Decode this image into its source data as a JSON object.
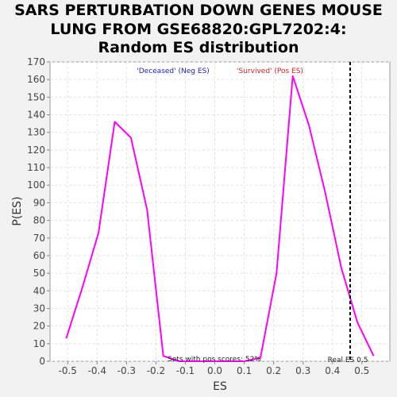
{
  "chart_data": {
    "type": "line",
    "title": [
      "SARS PERTURBATION DOWN GENES MOUSE",
      "LUNG FROM GSE68820:GPL7202:4:",
      "Random ES distribution"
    ],
    "xlabel": "ES",
    "ylabel": "P(ES)",
    "xlim": [
      -0.56,
      0.595
    ],
    "ylim": [
      0,
      170
    ],
    "x_ticks": [
      -0.5,
      -0.4,
      -0.3,
      -0.2,
      -0.1,
      0.0,
      0.1,
      0.2,
      0.3,
      0.4,
      0.5
    ],
    "x_tick_labels": [
      "-0.5",
      "-0.4",
      "-0.3",
      "-0.2",
      "-0.1",
      "0.0",
      "0.1",
      "0.2",
      "0.3",
      "0.4",
      "0.5"
    ],
    "y_ticks": [
      0,
      10,
      20,
      30,
      40,
      50,
      60,
      70,
      80,
      90,
      100,
      110,
      120,
      130,
      140,
      150,
      160,
      170
    ],
    "grid": true,
    "series": [
      {
        "color": "#ff00ff",
        "x": [
          -0.505,
          -0.45,
          -0.395,
          -0.34,
          -0.285,
          -0.23,
          -0.175,
          -0.12,
          -0.065,
          -0.01,
          0.045,
          0.1,
          0.155,
          0.21,
          0.265,
          0.32,
          0.375,
          0.43,
          0.485,
          0.54
        ],
        "y": [
          13,
          42,
          73,
          136,
          127,
          86,
          3,
          0,
          0,
          0,
          0,
          0,
          2,
          50,
          162,
          134,
          96,
          53,
          22,
          3
        ]
      }
    ],
    "legend": [
      {
        "label": "'Deceased' (Neg ES)",
        "color": "#2222bb"
      },
      {
        "label": "'Survived' (Pos ES)",
        "color": "#dd2222"
      }
    ],
    "legend_placement": "top",
    "vline": {
      "x": 0.46,
      "style": "dashed",
      "color": "#000000"
    },
    "annotations": {
      "pos_scores": "Sets with pos scores: 52%",
      "real_es": "Real ES 0.5"
    }
  }
}
